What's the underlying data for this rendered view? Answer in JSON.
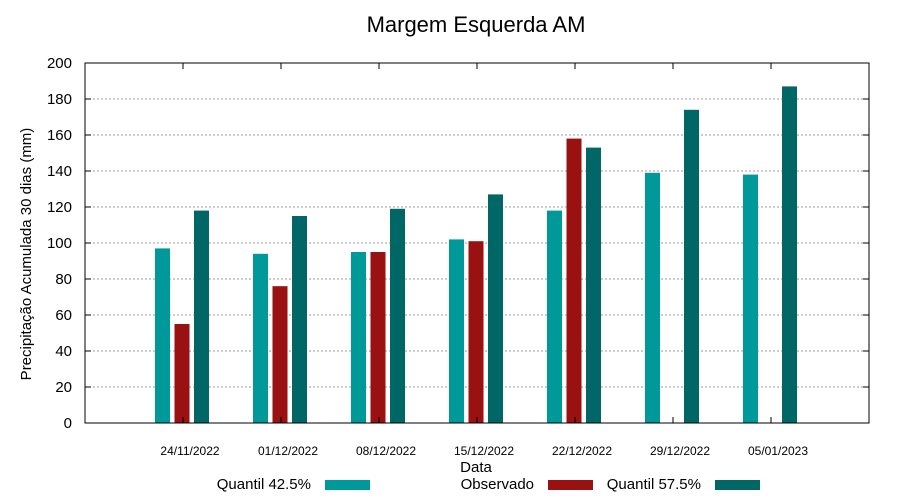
{
  "chart_data": {
    "type": "bar",
    "title": "Margem Esquerda AM",
    "xlabel": "Data",
    "ylabel": "Precipitação Acumulada 30 dias (mm)",
    "ylim": [
      0,
      200
    ],
    "yticks": [
      0,
      20,
      40,
      60,
      80,
      100,
      120,
      140,
      160,
      180,
      200
    ],
    "grid": true,
    "legend_position": "bottom",
    "categories": [
      "24/11/2022",
      "01/12/2022",
      "08/12/2022",
      "15/12/2022",
      "22/12/2022",
      "29/12/2022",
      "05/01/2023"
    ],
    "series": [
      {
        "name": "Quantil 42.5%",
        "color": "#009999",
        "values": [
          97,
          94,
          95,
          102,
          118,
          139,
          138
        ]
      },
      {
        "name": "Observado",
        "color": "#991111",
        "values": [
          55,
          76,
          95,
          101,
          158,
          null,
          null
        ]
      },
      {
        "name": "Quantil 57.5%",
        "color": "#006666",
        "values": [
          118,
          115,
          119,
          127,
          153,
          174,
          187
        ]
      }
    ]
  }
}
